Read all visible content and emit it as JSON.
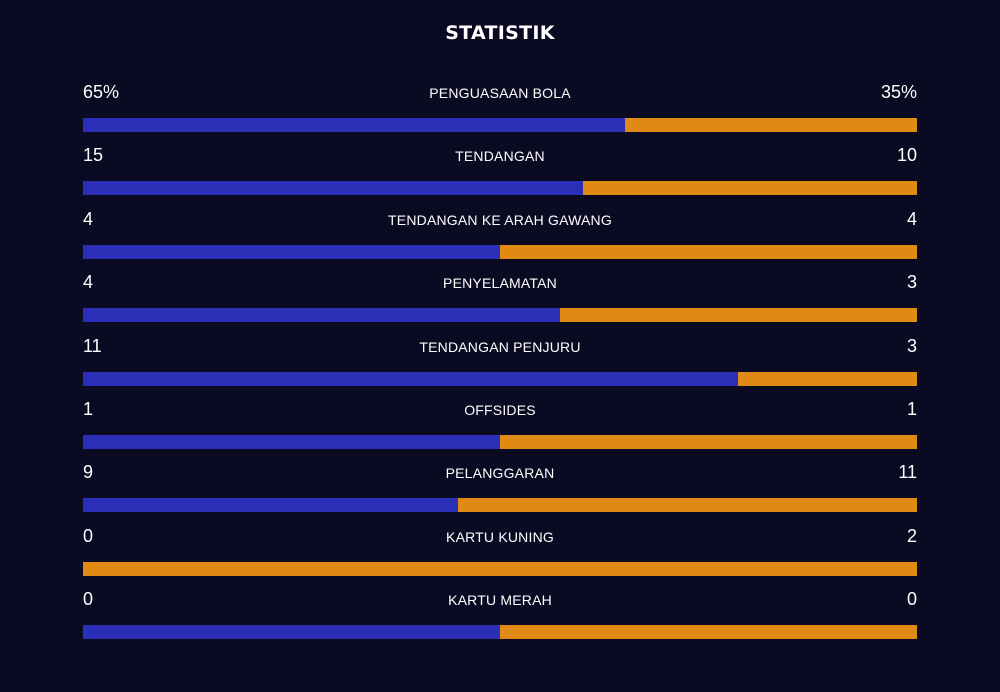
{
  "title": "STATISTIK",
  "colors": {
    "background": "#0a0a22",
    "home": "#2b2fb5",
    "away": "#e08a14"
  },
  "stats": [
    {
      "label": "PENGUASAAN BOLA",
      "home": "65%",
      "away": "35%",
      "home_num": 65,
      "away_num": 35
    },
    {
      "label": "TENDANGAN",
      "home": "15",
      "away": "10",
      "home_num": 15,
      "away_num": 10
    },
    {
      "label": "TENDANGAN KE ARAH GAWANG",
      "home": "4",
      "away": "4",
      "home_num": 4,
      "away_num": 4
    },
    {
      "label": "PENYELAMATAN",
      "home": "4",
      "away": "3",
      "home_num": 4,
      "away_num": 3
    },
    {
      "label": "TENDANGAN PENJURU",
      "home": "11",
      "away": "3",
      "home_num": 11,
      "away_num": 3
    },
    {
      "label": "OFFSIDES",
      "home": "1",
      "away": "1",
      "home_num": 1,
      "away_num": 1
    },
    {
      "label": "PELANGGARAN",
      "home": "9",
      "away": "11",
      "home_num": 9,
      "away_num": 11
    },
    {
      "label": "KARTU KUNING",
      "home": "0",
      "away": "2",
      "home_num": 0,
      "away_num": 2
    },
    {
      "label": "KARTU MERAH",
      "home": "0",
      "away": "0",
      "home_num": 0,
      "away_num": 0
    }
  ]
}
